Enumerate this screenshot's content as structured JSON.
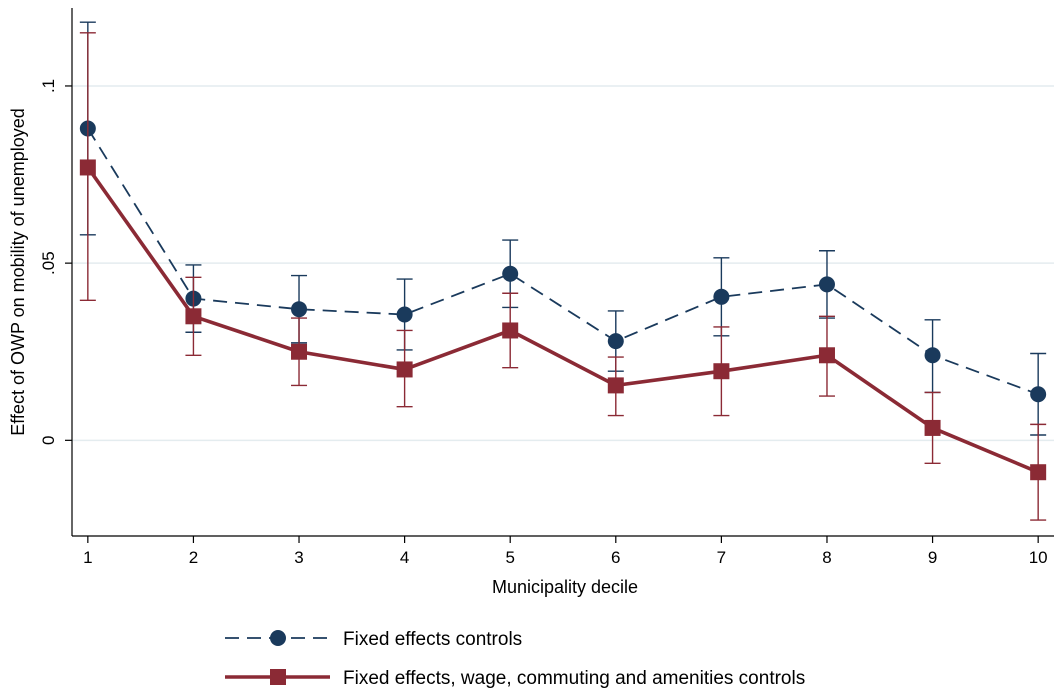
{
  "chart_data": {
    "type": "line",
    "title": "",
    "xlabel": "Municipality decile",
    "ylabel": "Effect of OWP on mobility of unemployed",
    "x": [
      1,
      2,
      3,
      4,
      5,
      6,
      7,
      8,
      9,
      10
    ],
    "x_tick_labels": [
      "1",
      "2",
      "3",
      "4",
      "5",
      "6",
      "7",
      "8",
      "9",
      "10"
    ],
    "y_ticks": [
      0,
      0.05,
      0.1
    ],
    "y_tick_labels": [
      "0",
      ".05",
      ".1"
    ],
    "ylim": [
      -0.027,
      0.122
    ],
    "xlim": [
      0.85,
      10.15
    ],
    "grid": "horizontal",
    "legend_placement": "bottom",
    "series": [
      {
        "name": "Fixed effects controls",
        "color": "#1a3a5c",
        "line_style": "dashed",
        "marker": "circle",
        "values": [
          0.088,
          0.04,
          0.037,
          0.0355,
          0.047,
          0.028,
          0.0405,
          0.044,
          0.024,
          0.013
        ],
        "ci_low": [
          0.058,
          0.0305,
          0.0275,
          0.0255,
          0.0375,
          0.0195,
          0.0295,
          0.0345,
          0.0135,
          0.0015
        ],
        "ci_high": [
          0.118,
          0.0495,
          0.0465,
          0.0455,
          0.0565,
          0.0365,
          0.0515,
          0.0535,
          0.034,
          0.0245
        ]
      },
      {
        "name": "Fixed effects, wage, commuting and amenities controls",
        "color": "#8b2a35",
        "line_style": "solid",
        "marker": "square",
        "values": [
          0.077,
          0.035,
          0.025,
          0.02,
          0.031,
          0.0155,
          0.0195,
          0.024,
          0.0035,
          -0.009
        ],
        "ci_low": [
          0.0395,
          0.024,
          0.0155,
          0.0095,
          0.0205,
          0.007,
          0.007,
          0.0125,
          -0.0065,
          -0.0225
        ],
        "ci_high": [
          0.115,
          0.046,
          0.0345,
          0.031,
          0.0415,
          0.0235,
          0.032,
          0.035,
          0.0135,
          0.0045
        ]
      }
    ]
  }
}
